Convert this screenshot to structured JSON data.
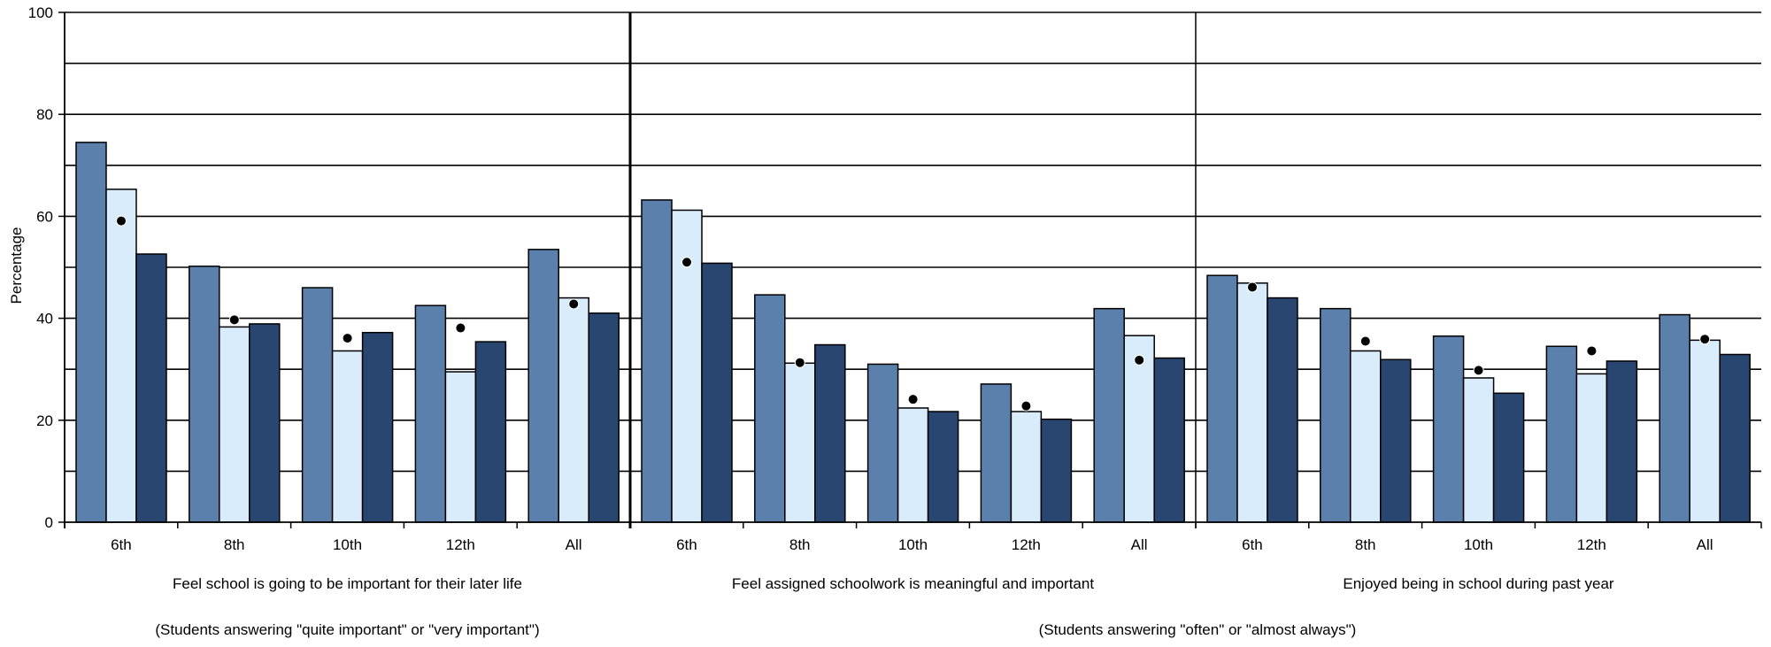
{
  "chart_data": {
    "type": "bar",
    "ylabel": "Percentage",
    "ylim": [
      0,
      100
    ],
    "yticks": [
      0,
      20,
      40,
      60,
      80,
      100
    ],
    "grid": true,
    "series_colors": [
      "#5b80ab",
      "#d9ecfb",
      "#284670"
    ],
    "marker_color": "#000000",
    "panels": [
      {
        "title": "Feel school is going to be important for their later life",
        "note": "(Students answering \"quite important\" or \"very important\")",
        "categories": [
          "6th",
          "8th",
          "10th",
          "12th",
          "All"
        ],
        "series": [
          {
            "values": [
              74.5,
              50.2,
              46.0,
              42.5,
              53.5
            ]
          },
          {
            "values": [
              65.3,
              38.3,
              33.6,
              29.5,
              44.0
            ]
          },
          {
            "values": [
              52.6,
              38.9,
              37.2,
              35.4,
              41.0
            ]
          }
        ],
        "markers": [
          59.1,
          39.7,
          36.1,
          38.1,
          42.8
        ]
      },
      {
        "title": "Feel assigned schoolwork is meaningful and important",
        "note": "",
        "categories": [
          "6th",
          "8th",
          "10th",
          "12th",
          "All"
        ],
        "series": [
          {
            "values": [
              63.2,
              44.6,
              31.0,
              27.1,
              41.9
            ]
          },
          {
            "values": [
              61.2,
              31.2,
              22.4,
              21.7,
              36.6
            ]
          },
          {
            "values": [
              50.8,
              34.8,
              21.7,
              20.2,
              32.2
            ]
          }
        ],
        "markers": [
          51.0,
          31.3,
          24.1,
          22.8,
          31.8
        ]
      },
      {
        "title": "Enjoyed being in school during past year",
        "note": "",
        "categories": [
          "6th",
          "8th",
          "10th",
          "12th",
          "All"
        ],
        "series": [
          {
            "values": [
              48.4,
              41.9,
              36.5,
              34.5,
              40.7
            ]
          },
          {
            "values": [
              46.9,
              33.6,
              28.3,
              29.1,
              35.7
            ]
          },
          {
            "values": [
              44.0,
              31.9,
              25.3,
              31.6,
              32.9
            ]
          }
        ],
        "markers": [
          46.1,
          35.5,
          29.8,
          33.6,
          35.9
        ]
      }
    ],
    "shared_note": "(Students answering \"often\" or \"almost always\")"
  }
}
